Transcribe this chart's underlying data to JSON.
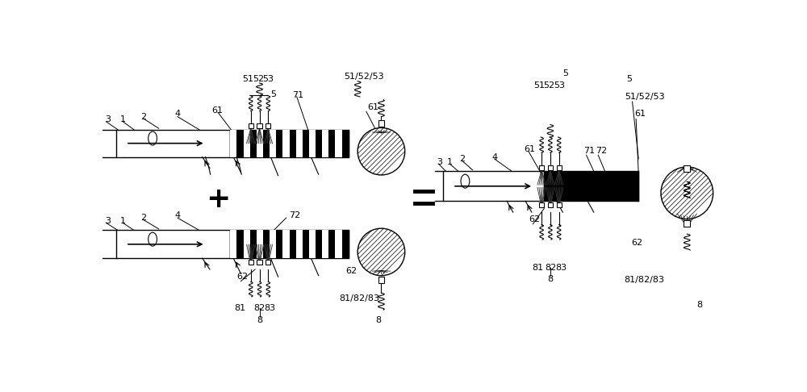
{
  "bg_color": "#ffffff",
  "line_color": "#000000",
  "fig_width": 10.0,
  "fig_height": 4.86,
  "dpi": 100,
  "label_fontsize": 8.0
}
